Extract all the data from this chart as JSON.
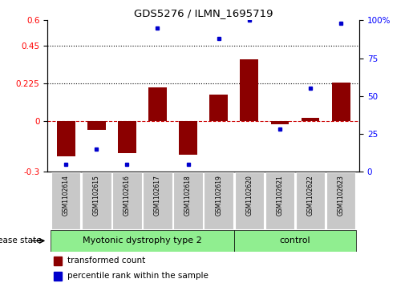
{
  "title": "GDS5276 / ILMN_1695719",
  "categories": [
    "GSM1102614",
    "GSM1102615",
    "GSM1102616",
    "GSM1102617",
    "GSM1102618",
    "GSM1102619",
    "GSM1102620",
    "GSM1102621",
    "GSM1102622",
    "GSM1102623"
  ],
  "red_bars": [
    -0.21,
    -0.05,
    -0.19,
    0.2,
    -0.2,
    0.16,
    0.37,
    -0.02,
    0.02,
    0.23
  ],
  "blue_dots_pct": [
    5,
    15,
    5,
    95,
    5,
    88,
    100,
    28,
    55,
    98
  ],
  "ylim_left": [
    -0.3,
    0.6
  ],
  "ylim_right": [
    0,
    100
  ],
  "yticks_left": [
    -0.3,
    0,
    0.225,
    0.45,
    0.6
  ],
  "yticks_right": [
    0,
    25,
    50,
    75,
    100
  ],
  "ytick_labels_left": [
    "-0.3",
    "0",
    "0.225",
    "0.45",
    "0.6"
  ],
  "ytick_labels_right": [
    "0",
    "25",
    "50",
    "75",
    "100%"
  ],
  "hlines": [
    0.225,
    0.45
  ],
  "disease_groups": [
    {
      "label": "Myotonic dystrophy type 2",
      "start": 0,
      "end": 6,
      "color": "#90EE90"
    },
    {
      "label": "control",
      "start": 6,
      "end": 10,
      "color": "#90EE90"
    }
  ],
  "disease_state_label": "disease state",
  "legend_items": [
    {
      "color": "#8B0000",
      "label": "transformed count"
    },
    {
      "color": "#0000CD",
      "label": "percentile rank within the sample"
    }
  ],
  "bar_color": "#8B0000",
  "dot_color": "#0000CD",
  "zero_line_color": "#CC0000",
  "background_color": "#ffffff",
  "plot_bg_color": "#ffffff",
  "tick_bg_color": "#c8c8c8"
}
